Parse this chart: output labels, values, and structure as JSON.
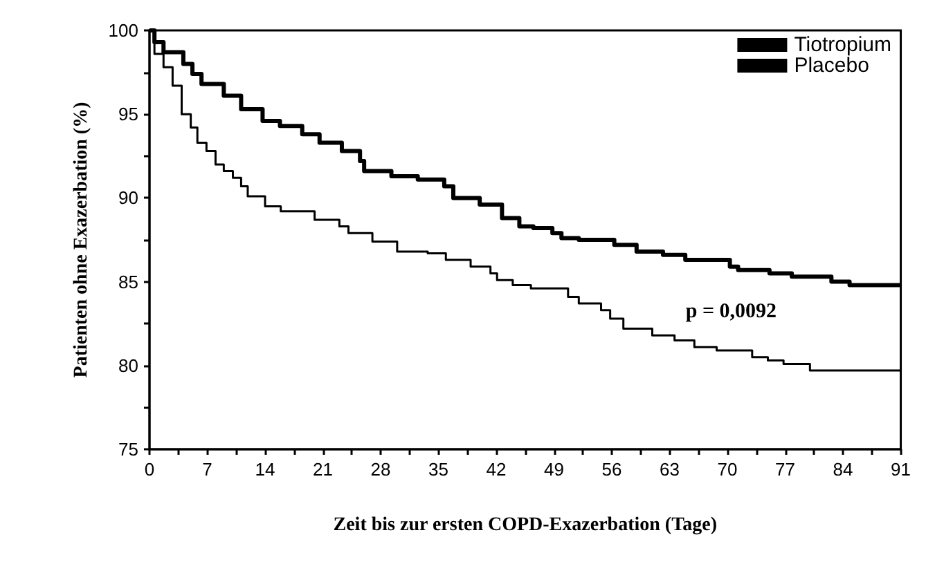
{
  "chart_data": {
    "type": "step",
    "xlabel": "Zeit bis zur ersten COPD-Exazerbation (Tage)",
    "ylabel": "Patienten ohne Exazerbation (%)",
    "annotations": [
      "p = 0,0092"
    ],
    "xlim": [
      0,
      91
    ],
    "ylim": [
      75,
      100
    ],
    "xticks": [
      0,
      {
        "value": 3.5,
        "label": null
      },
      7,
      {
        "value": 10.5,
        "label": null
      },
      14,
      {
        "value": 17.5,
        "label": null
      },
      21,
      {
        "value": 24.5,
        "label": null
      },
      28,
      {
        "value": 31.5,
        "label": null
      },
      35,
      {
        "value": 38.5,
        "label": null
      },
      42,
      {
        "value": 45.5,
        "label": null
      },
      49,
      {
        "value": 52.5,
        "label": null
      },
      56,
      {
        "value": 59.5,
        "label": null
      },
      63,
      {
        "value": 66.5,
        "label": null
      },
      70,
      {
        "value": 73.5,
        "label": null
      },
      77,
      {
        "value": 80.5,
        "label": null
      },
      84,
      {
        "value": 87.5,
        "label": null
      },
      91
    ],
    "yticks": [
      75,
      {
        "value": 77.5,
        "label": null
      },
      80,
      {
        "value": 82.5,
        "label": null
      },
      85,
      {
        "value": 87.5,
        "label": null
      },
      90,
      {
        "value": 92.5,
        "label": null
      },
      95,
      {
        "value": 97.5,
        "label": null
      },
      100
    ],
    "legend": "top right",
    "grid": false,
    "series": [
      {
        "name": "Tiotropium",
        "color": "#000000",
        "x": [
          0,
          0.6,
          1.7,
          4.1,
          5.2,
          6.3,
          9,
          11.1,
          13.7,
          15.8,
          18.5,
          20.6,
          23.3,
          25.5,
          26,
          29.3,
          32.5,
          35.7,
          36.8,
          40,
          42.7,
          44.8,
          46.5,
          48.8,
          49.9,
          52,
          56.3,
          59,
          62.2,
          64.9,
          70.3,
          71.3,
          75.1,
          77.8,
          82.6,
          84.8,
          91
        ],
        "values": [
          100,
          99.3,
          98.7,
          98,
          97.4,
          96.8,
          96.1,
          95.3,
          94.6,
          94.3,
          93.8,
          93.3,
          92.8,
          92.2,
          91.6,
          91.3,
          91.1,
          90.7,
          90,
          89.6,
          88.8,
          88.3,
          88.2,
          87.9,
          87.6,
          87.5,
          87.2,
          86.8,
          86.6,
          86.3,
          85.9,
          85.7,
          85.5,
          85.3,
          85,
          84.8,
          84.8
        ]
      },
      {
        "name": "Placebo",
        "color": "#000000",
        "x": [
          0,
          0.6,
          1.7,
          2.8,
          3.9,
          5,
          5.8,
          6.9,
          8,
          9,
          10.1,
          11.1,
          11.9,
          14,
          15.9,
          20,
          23,
          24.1,
          27,
          30,
          33.7,
          35.9,
          38.9,
          41.3,
          42.1,
          44,
          46.2,
          50.7,
          52,
          54.7,
          55.8,
          57.4,
          60.9,
          63.6,
          66,
          68.7,
          73,
          74.9,
          76.8,
          80,
          91
        ],
        "values": [
          100,
          98.6,
          97.8,
          96.7,
          95,
          94.2,
          93.3,
          92.8,
          92,
          91.6,
          91.2,
          90.7,
          90.1,
          89.5,
          89.2,
          88.7,
          88.3,
          87.9,
          87.4,
          86.8,
          86.7,
          86.3,
          85.9,
          85.5,
          85.1,
          84.8,
          84.6,
          84.1,
          83.7,
          83.3,
          82.8,
          82.2,
          81.8,
          81.5,
          81.1,
          80.9,
          80.5,
          80.3,
          80.1,
          79.7,
          79.7
        ]
      }
    ]
  }
}
